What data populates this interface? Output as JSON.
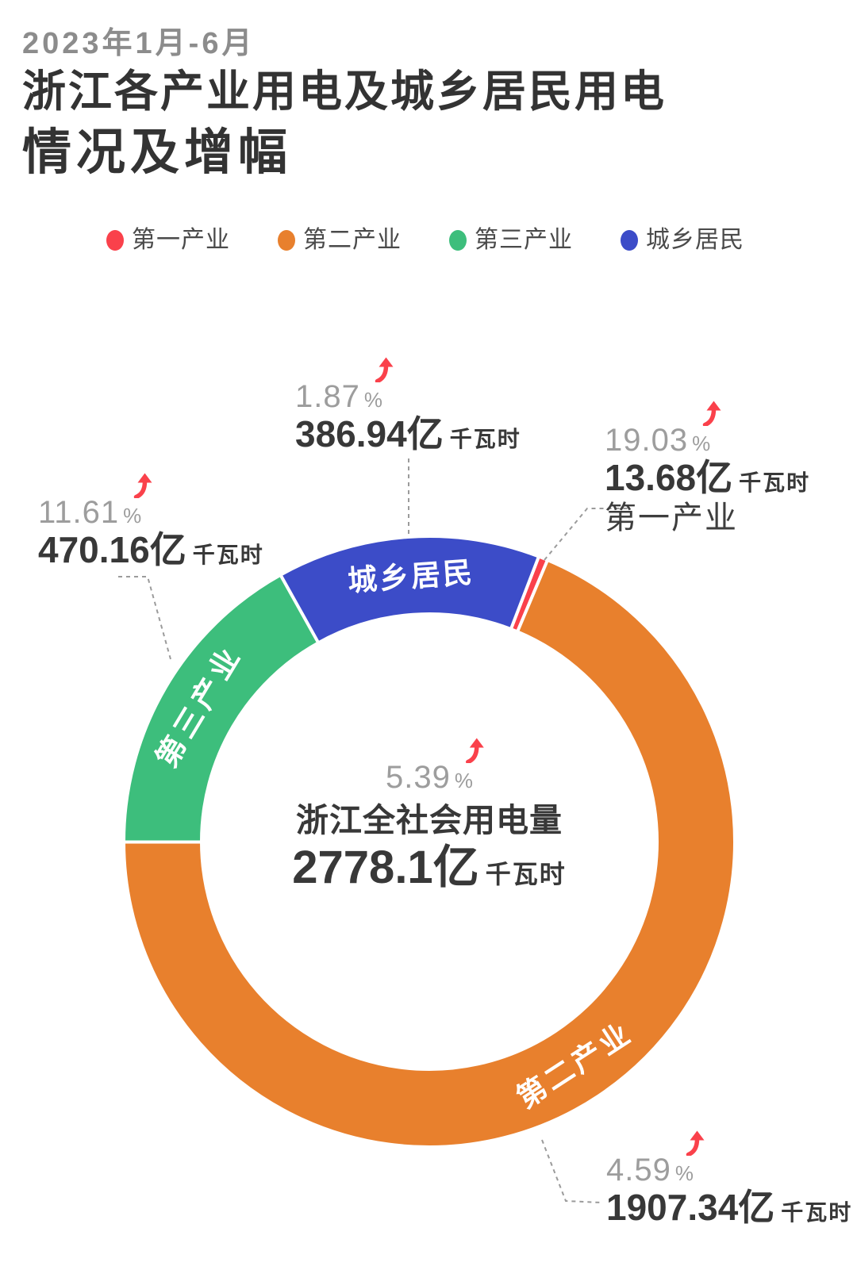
{
  "header": {
    "subtitle": "2023年1月-6月",
    "title_line1": "浙江各产业用电及城乡居民用电",
    "title_line2": "情况及增幅"
  },
  "strings": {
    "percent": "%"
  },
  "colors": {
    "primary_red": "#FA414B",
    "secondary_orange": "#E8802D",
    "tertiary_green": "#3DBE7C",
    "residents_blue": "#3C4CC8",
    "arrow_red": "#FA414B",
    "dark_text": "#383838",
    "pct_gray": "#9D9D9D",
    "subtitle_gray": "#8C8C8C",
    "legend_text": "#4A4A4A",
    "leader_gray": "#9B9B9B",
    "arc_label_white": "#FFFFFF"
  },
  "chart_data": {
    "type": "pie",
    "title": "2023年1月-6月 浙江各产业用电及城乡居民用电情况及增幅",
    "unit": "亿千瓦时",
    "legend_position": "top",
    "start_angle_deg": 21,
    "donut": true,
    "total": {
      "name": "浙江全社会用电量",
      "value": 2778.1,
      "value_label": "2778.1亿",
      "unit_label": "千瓦时",
      "growth_pct": 5.39,
      "growth_label": "5.39"
    },
    "series": [
      {
        "name": "第一产业",
        "value": 13.68,
        "value_label": "13.68亿",
        "unit_label": "千瓦时",
        "growth_pct": 19.03,
        "growth_label": "19.03",
        "color": "#FA414B"
      },
      {
        "name": "第二产业",
        "value": 1907.34,
        "value_label": "1907.34亿",
        "unit_label": "千瓦时",
        "growth_pct": 4.59,
        "growth_label": "4.59",
        "color": "#E8802D"
      },
      {
        "name": "第三产业",
        "value": 470.16,
        "value_label": "470.16亿",
        "unit_label": "千瓦时",
        "growth_pct": 11.61,
        "growth_label": "11.61",
        "color": "#3DBE7C"
      },
      {
        "name": "城乡居民",
        "value": 386.94,
        "value_label": "386.94亿",
        "unit_label": "千瓦时",
        "growth_pct": 1.87,
        "growth_label": "1.87",
        "color": "#3C4CC8"
      }
    ]
  }
}
